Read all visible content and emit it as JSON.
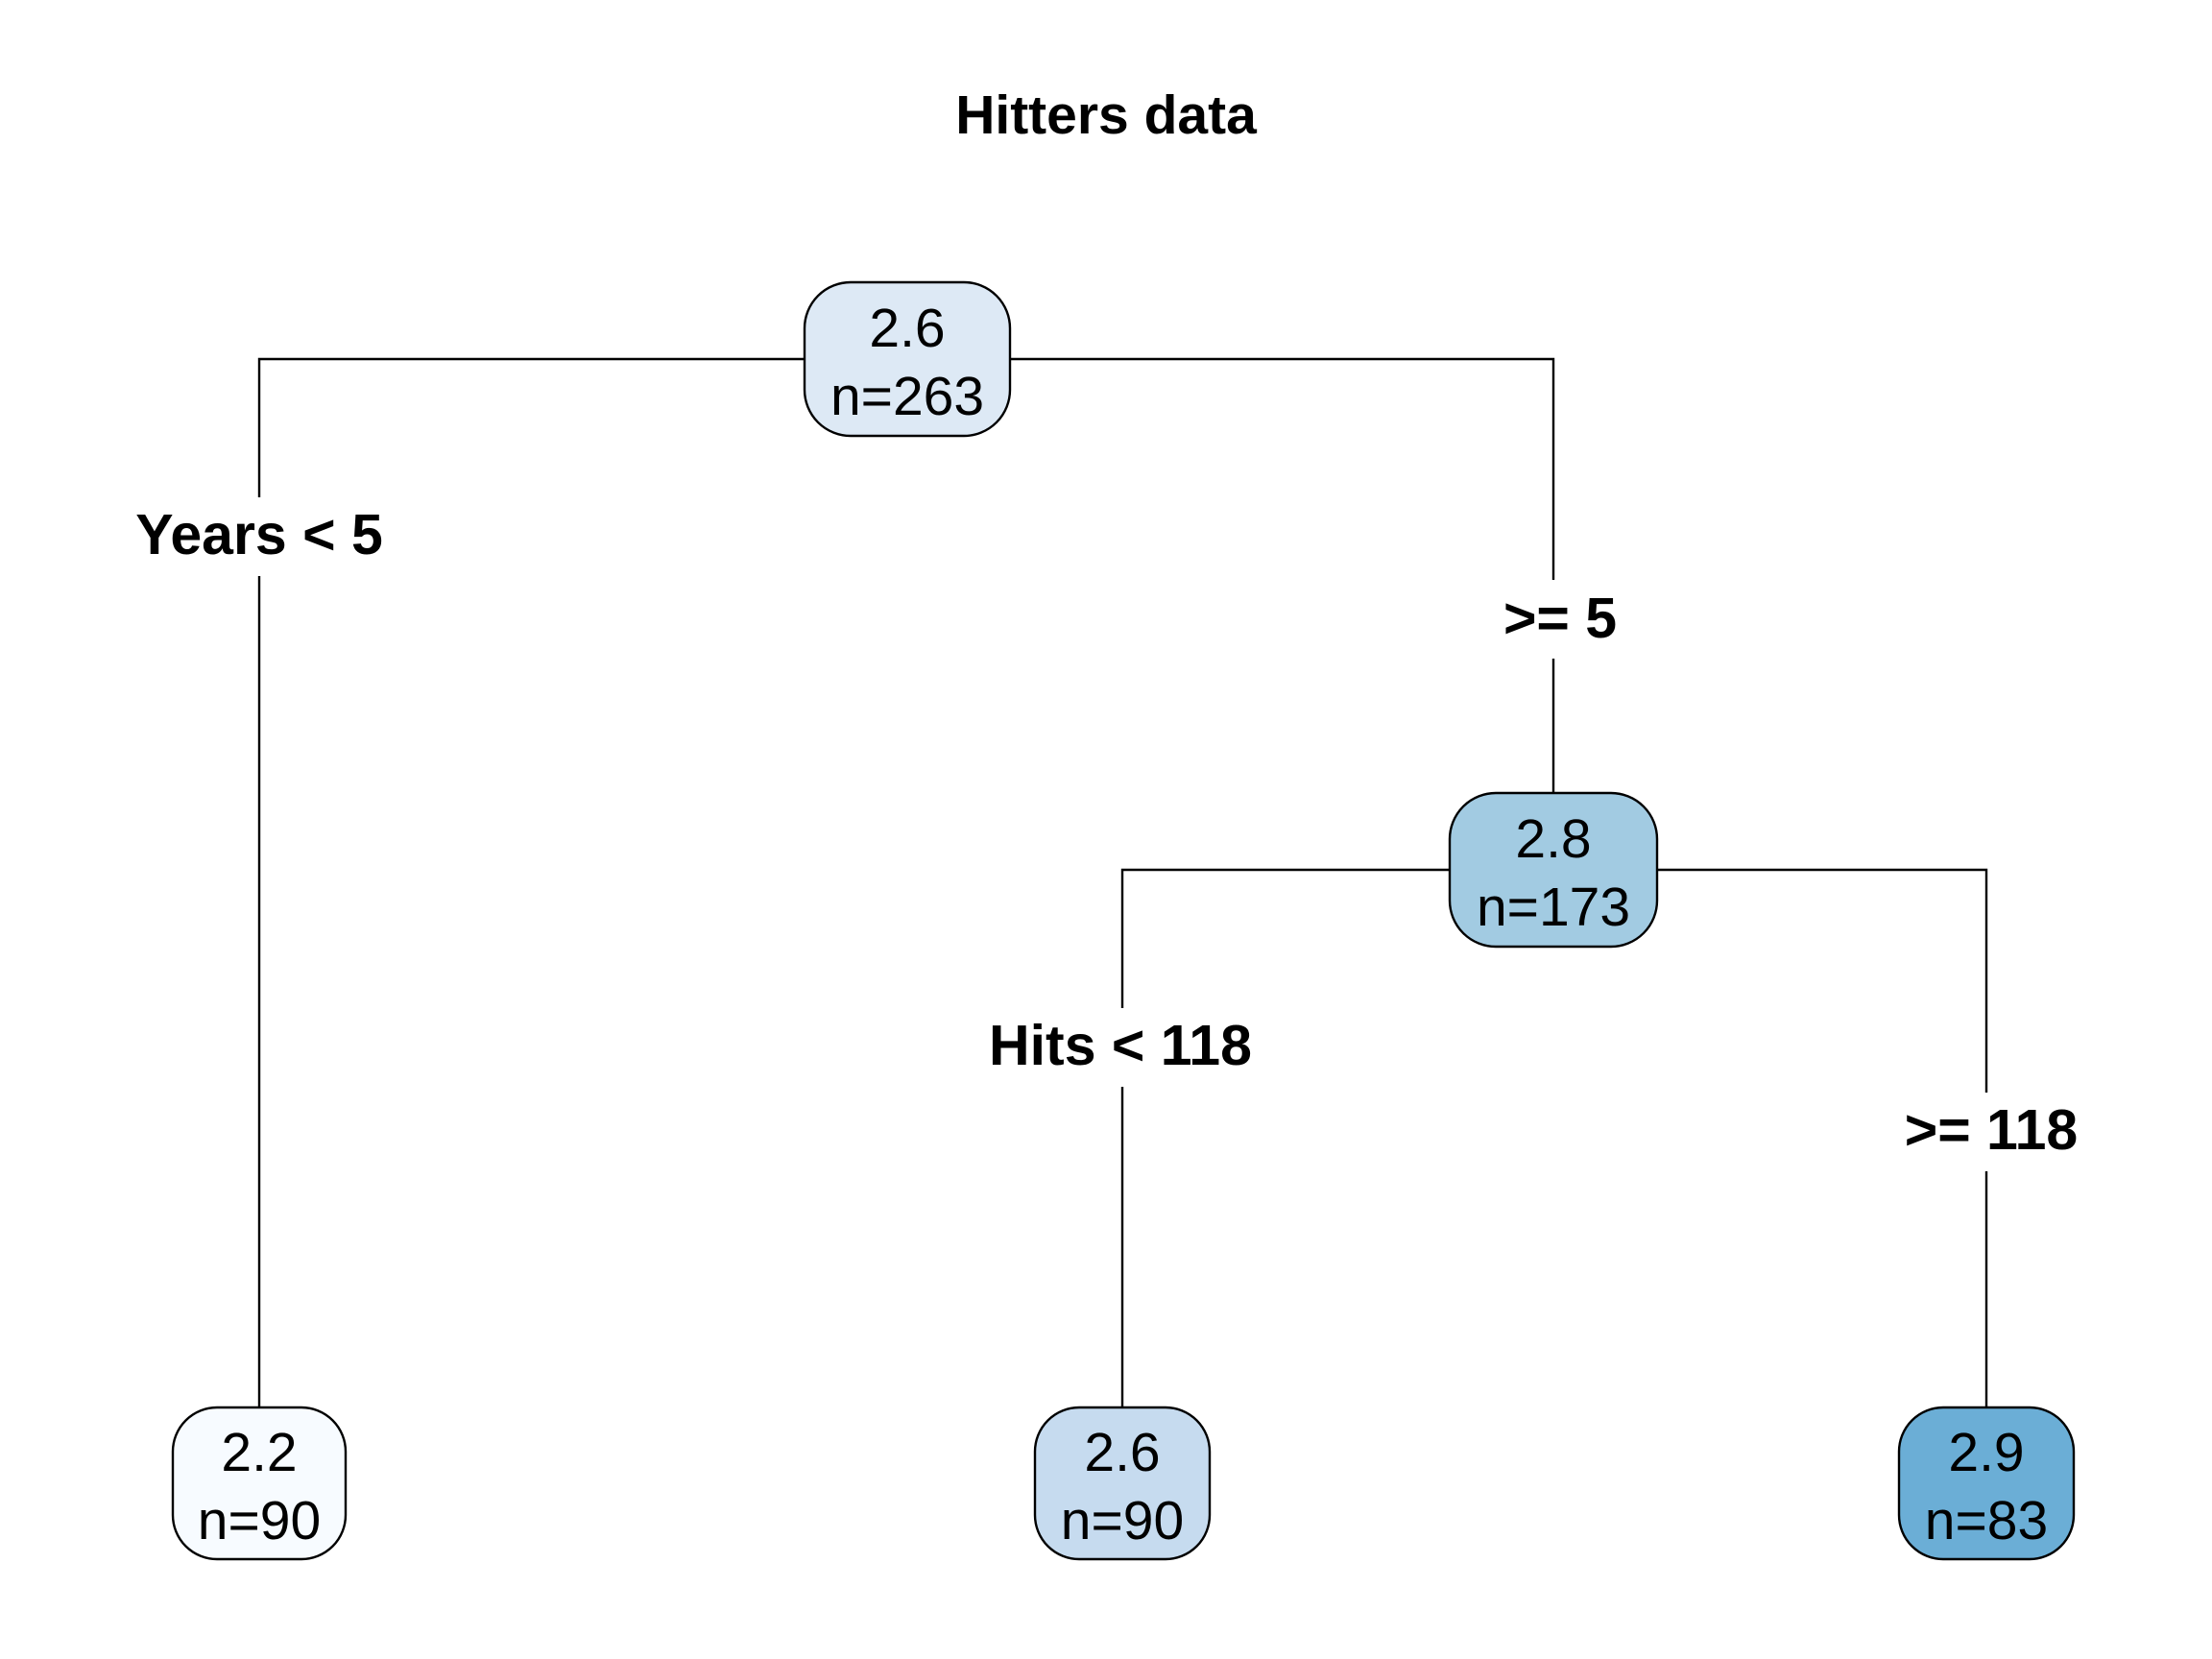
{
  "title": "Hitters data",
  "nodes": {
    "root": {
      "value": "2.6",
      "count": "n=263",
      "fill": "#dde9f5"
    },
    "right": {
      "value": "2.8",
      "count": "n=173",
      "fill": "#a2cbe2"
    },
    "leaf_left": {
      "value": "2.2",
      "count": "n=90",
      "fill": "#f7fbff"
    },
    "leaf_middle": {
      "value": "2.6",
      "count": "n=90",
      "fill": "#c6dbef"
    },
    "leaf_right": {
      "value": "2.9",
      "count": "n=83",
      "fill": "#6baed6"
    }
  },
  "splits": {
    "root_left": "Years < 5",
    "root_right": ">= 5",
    "right_left": "Hits < 118",
    "right_right": ">= 118"
  }
}
